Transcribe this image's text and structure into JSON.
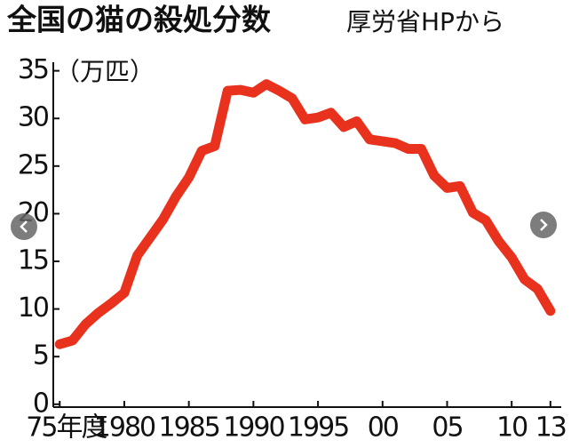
{
  "chart_data": {
    "type": "line",
    "title": "全国の猫の殺処分数",
    "subtitle": "厚労省HPから",
    "y_label": "（万匹）",
    "x": [
      1975,
      1976,
      1977,
      1978,
      1979,
      1980,
      1981,
      1982,
      1983,
      1984,
      1985,
      1986,
      1987,
      1988,
      1989,
      1990,
      1991,
      1992,
      1993,
      1994,
      1995,
      1996,
      1997,
      1998,
      1999,
      2000,
      2001,
      2002,
      2003,
      2004,
      2005,
      2006,
      2007,
      2008,
      2009,
      2010,
      2011,
      2012,
      2013
    ],
    "series": [
      {
        "name": "猫の殺処分数",
        "color": "#e8321e",
        "values": [
          6.3,
          6.7,
          8.4,
          9.6,
          10.6,
          11.7,
          15.6,
          17.5,
          19.4,
          21.8,
          23.8,
          26.6,
          27.1,
          32.9,
          33.0,
          32.7,
          33.6,
          32.9,
          32.1,
          29.9,
          30.1,
          30.6,
          29.1,
          29.7,
          27.8,
          27.6,
          27.4,
          26.8,
          26.8,
          24.0,
          22.7,
          22.9,
          20.1,
          19.3,
          17.1,
          15.4,
          13.1,
          12.1,
          9.8
        ]
      }
    ],
    "xlim": [
      1974.5,
      2013.7
    ],
    "xticks": [
      {
        "value": 1975,
        "label": "75年度"
      },
      1980,
      1985,
      1990,
      1995,
      {
        "value": 2000,
        "label": "00"
      },
      {
        "value": 2005,
        "label": "05"
      },
      {
        "value": 2010,
        "label": "10"
      },
      {
        "value": 2013,
        "label": "13"
      }
    ],
    "ylim": [
      -0.3,
      35.9
    ],
    "yticks": [
      0,
      5,
      10,
      15,
      20,
      25,
      30,
      35
    ]
  }
}
